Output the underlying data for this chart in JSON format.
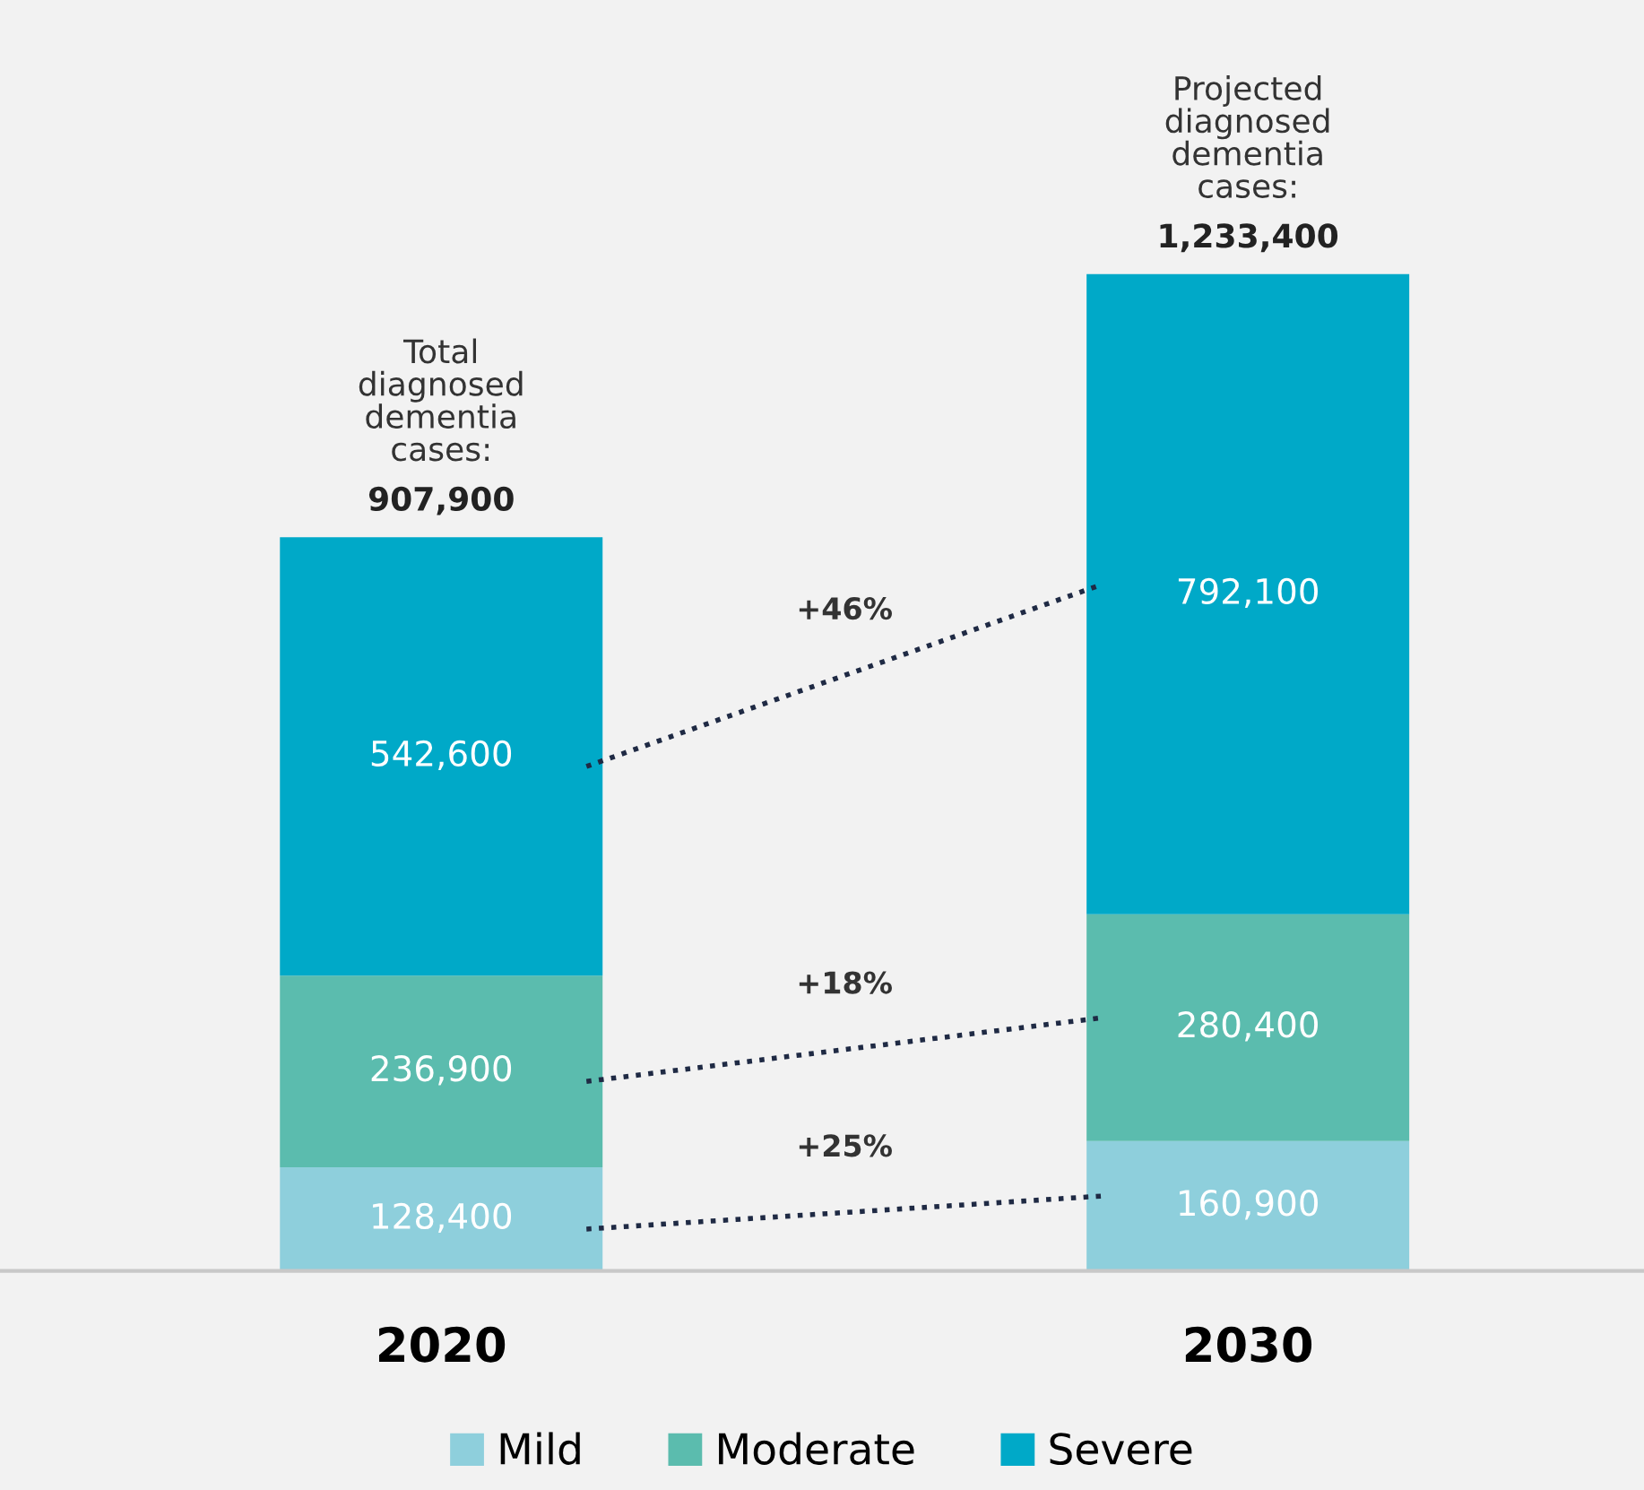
{
  "chart_data": {
    "type": "bar",
    "stacked": true,
    "categories": [
      "2020",
      "2030"
    ],
    "series": [
      {
        "name": "Mild",
        "color": "#8ecfdc",
        "values": [
          128400,
          160900
        ],
        "value_labels": [
          "128,400",
          "160,900"
        ]
      },
      {
        "name": "Moderate",
        "color": "#5bbcae",
        "values": [
          236900,
          280400
        ],
        "value_labels": [
          "236,900",
          "280,400"
        ]
      },
      {
        "name": "Severe",
        "color": "#00a9c8",
        "values": [
          542600,
          792100
        ],
        "value_labels": [
          "542,600",
          "792,100"
        ]
      }
    ],
    "totals": [
      "907,900",
      "1,233,400"
    ],
    "annotations": [
      "+25%",
      "+18%",
      "+46%",
      {
        "text": "Total\ndiagnosed\ndementia\ncases:",
        "x": "2020",
        "y": 907900
      },
      {
        "text": "Projected\ndiagnosed\ndementia\ncases:",
        "x": "2030",
        "y": 1233400
      }
    ],
    "legend": "bottom",
    "grid": false
  }
}
